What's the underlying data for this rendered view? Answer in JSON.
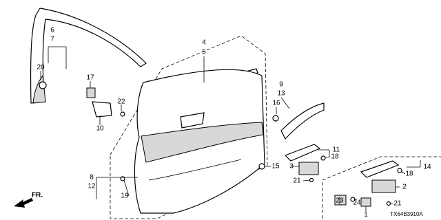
{
  "callouts": [
    {
      "label": "6"
    },
    {
      "label": "7"
    },
    {
      "label": "20"
    },
    {
      "label": "17"
    },
    {
      "label": "22"
    },
    {
      "label": "10"
    },
    {
      "label": "4"
    },
    {
      "label": "5"
    },
    {
      "label": "9"
    },
    {
      "label": "13"
    },
    {
      "label": "16"
    },
    {
      "label": "15"
    },
    {
      "label": "11"
    },
    {
      "label": "18"
    },
    {
      "label": "3"
    },
    {
      "label": "21"
    },
    {
      "label": "8"
    },
    {
      "label": "12"
    },
    {
      "label": "19"
    },
    {
      "label": "14"
    },
    {
      "label": "18"
    },
    {
      "label": "2"
    },
    {
      "label": "23"
    },
    {
      "label": "24"
    },
    {
      "label": "1"
    },
    {
      "label": "21"
    }
  ],
  "direction": "FR.",
  "diagram_code": "TX64B3910A"
}
